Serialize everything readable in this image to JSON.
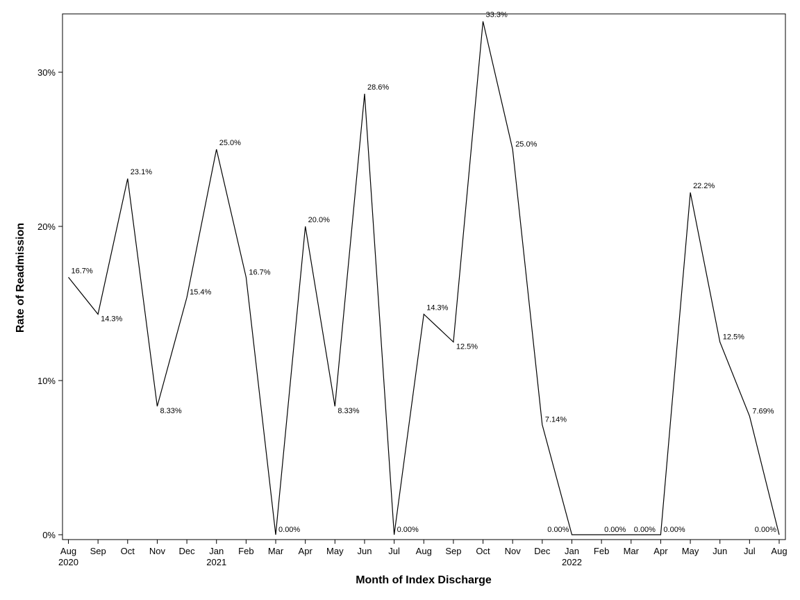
{
  "chart_data": {
    "type": "line",
    "xlabel": "Month of Index Discharge",
    "ylabel": "Rate of Readmission",
    "ylim": [
      0,
      33.3
    ],
    "y_ticks": [
      0,
      10,
      20,
      30
    ],
    "y_tick_labels": [
      "0%",
      "10%",
      "20%",
      "30%"
    ],
    "grid": false,
    "line_color": "#000000",
    "x": [
      "2020-08",
      "2020-09",
      "2020-10",
      "2020-11",
      "2020-12",
      "2021-01",
      "2021-02",
      "2021-03",
      "2021-04",
      "2021-05",
      "2021-06",
      "2021-07",
      "2021-08",
      "2021-09",
      "2021-10",
      "2021-11",
      "2021-12",
      "2022-01",
      "2022-02",
      "2022-03",
      "2022-04",
      "2022-05",
      "2022-06",
      "2022-07",
      "2022-08"
    ],
    "month_labels": [
      "Aug",
      "Sep",
      "Oct",
      "Nov",
      "Dec",
      "Jan",
      "Feb",
      "Mar",
      "Apr",
      "May",
      "Jun",
      "Jul",
      "Aug",
      "Sep",
      "Oct",
      "Nov",
      "Dec",
      "Jan",
      "Feb",
      "Mar",
      "Apr",
      "May",
      "Jun",
      "Jul",
      "Aug"
    ],
    "year_labels": [
      "2020",
      "",
      "",
      "",
      "",
      "2021",
      "",
      "",
      "",
      "",
      "",
      "",
      "",
      "",
      "",
      "",
      "",
      "2022",
      "",
      "",
      "",
      "",
      "",
      "",
      ""
    ],
    "values": [
      16.7,
      14.3,
      23.1,
      8.33,
      15.4,
      25.0,
      16.7,
      0.0,
      20.0,
      8.33,
      28.6,
      0.0,
      14.3,
      12.5,
      33.3,
      25.0,
      7.14,
      0.0,
      0.0,
      0.0,
      0.0,
      22.2,
      12.5,
      7.69,
      0.0
    ],
    "value_labels": [
      "16.7%",
      "14.3%",
      "23.1%",
      "8.33%",
      "15.4%",
      "25.0%",
      "16.7%",
      "0.00%",
      "20.0%",
      "8.33%",
      "28.6%",
      "0.00%",
      "14.3%",
      "12.5%",
      "33.3%",
      "25.0%",
      "7.14%",
      "0.00%",
      "0.00%",
      "0.00%",
      "0.00%",
      "22.2%",
      "12.5%",
      "7.69%",
      "0.00%"
    ]
  }
}
